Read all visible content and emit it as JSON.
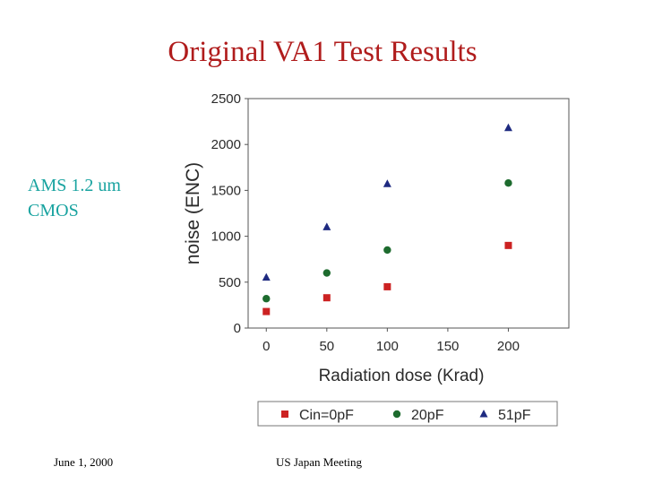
{
  "slide": {
    "title": "Original VA1 Test Results",
    "side_label_line1": "AMS 1.2 um",
    "side_label_line2": "CMOS",
    "footer_date": "June 1, 2000",
    "footer_event": "US Japan Meeting"
  },
  "chart_data": {
    "type": "scatter",
    "title": "",
    "xlabel": "Radiation dose (Krad)",
    "ylabel": "noise (ENC)",
    "xlim": [
      -15,
      250
    ],
    "ylim": [
      0,
      2500
    ],
    "xticks": [
      0,
      50,
      100,
      150,
      200
    ],
    "yticks": [
      0,
      500,
      1000,
      1500,
      2000,
      2500
    ],
    "legend_position": "bottom",
    "series": [
      {
        "name": "Cin=0pF",
        "marker": "square",
        "color": "#cc2222",
        "x": [
          0,
          50,
          100,
          200
        ],
        "y": [
          180,
          330,
          450,
          900
        ]
      },
      {
        "name": "20pF",
        "marker": "circle",
        "color": "#1d6b2e",
        "x": [
          0,
          50,
          100,
          200
        ],
        "y": [
          320,
          600,
          850,
          1580
        ]
      },
      {
        "name": "51pF",
        "marker": "triangle",
        "color": "#1e2a80",
        "x": [
          0,
          50,
          100,
          200
        ],
        "y": [
          550,
          1100,
          1570,
          2180
        ]
      }
    ]
  }
}
